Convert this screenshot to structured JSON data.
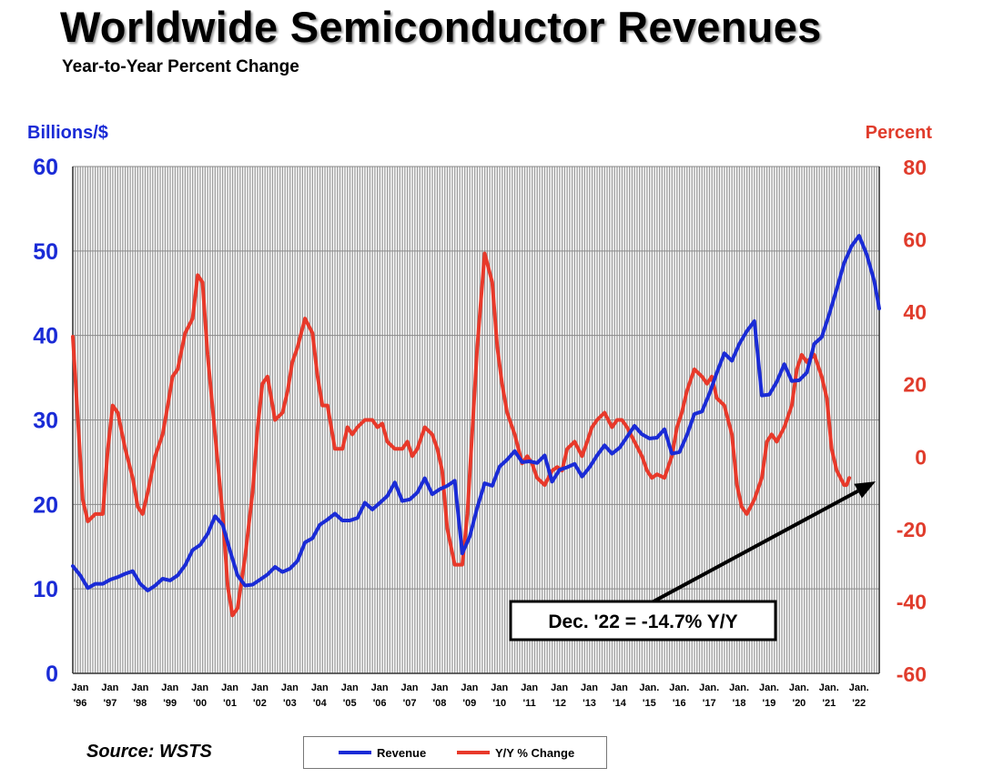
{
  "header": {
    "title": "Worldwide Semiconductor Revenues",
    "subtitle": "Year-to-Year Percent Change"
  },
  "axes": {
    "left_unit": "Billions/$",
    "right_unit": "Percent"
  },
  "annotation": "Dec. '22 = -14.7% Y/Y",
  "source": "Source: WSTS",
  "legend": {
    "revenue": "Revenue",
    "yoy": "Y/Y % Change"
  },
  "colors": {
    "revenue": "#1a2bd6",
    "yoy": "#e8392a",
    "grid": "#9c9c9c"
  },
  "chart_data": {
    "type": "line",
    "x_ticks": [
      {
        "top": "Jan",
        "bottom": "'96"
      },
      {
        "top": "Jan",
        "bottom": "'97"
      },
      {
        "top": "Jan",
        "bottom": "'98"
      },
      {
        "top": "Jan",
        "bottom": "'99"
      },
      {
        "top": "Jan",
        "bottom": "'00"
      },
      {
        "top": "Jan",
        "bottom": "'01"
      },
      {
        "top": "Jan",
        "bottom": "'02"
      },
      {
        "top": "Jan",
        "bottom": "'03"
      },
      {
        "top": "Jan",
        "bottom": "'04"
      },
      {
        "top": "Jan",
        "bottom": "'05"
      },
      {
        "top": "Jan",
        "bottom": "'06"
      },
      {
        "top": "Jan",
        "bottom": "'07"
      },
      {
        "top": "Jan",
        "bottom": "'08"
      },
      {
        "top": "Jan",
        "bottom": "'09"
      },
      {
        "top": "Jan",
        "bottom": "'10"
      },
      {
        "top": "Jan",
        "bottom": "'11"
      },
      {
        "top": "Jan",
        "bottom": "'12"
      },
      {
        "top": "Jan",
        "bottom": "'13"
      },
      {
        "top": "Jan",
        "bottom": "'14"
      },
      {
        "top": "Jan.",
        "bottom": "'15"
      },
      {
        "top": "Jan.",
        "bottom": "'16"
      },
      {
        "top": "Jan.",
        "bottom": "'17"
      },
      {
        "top": "Jan.",
        "bottom": "'18"
      },
      {
        "top": "Jan.",
        "bottom": "'19"
      },
      {
        "top": "Jan.",
        "bottom": "'20"
      },
      {
        "top": "Jan.",
        "bottom": "'21"
      },
      {
        "top": "Jan.",
        "bottom": "'22"
      }
    ],
    "x_range": [
      1996.0,
      2022.92
    ],
    "left_axis": {
      "min": 0,
      "max": 60,
      "ticks": [
        0,
        10,
        20,
        30,
        40,
        50,
        60
      ]
    },
    "right_axis": {
      "min": -60,
      "max": 80,
      "ticks": [
        -60,
        -40,
        -20,
        0,
        20,
        40,
        60,
        80
      ]
    },
    "grid": true,
    "legend_position": "bottom",
    "annotation_point": {
      "x": 2022.92,
      "y": -6
    },
    "series": [
      {
        "name": "Revenue",
        "axis": "left",
        "points": [
          [
            1996.0,
            12.7
          ],
          [
            1996.25,
            11.6
          ],
          [
            1996.5,
            10.1
          ],
          [
            1996.75,
            10.6
          ],
          [
            1997.0,
            10.6
          ],
          [
            1997.25,
            11.1
          ],
          [
            1997.5,
            11.4
          ],
          [
            1997.75,
            11.8
          ],
          [
            1998.0,
            12.1
          ],
          [
            1998.25,
            10.6
          ],
          [
            1998.5,
            9.8
          ],
          [
            1998.75,
            10.4
          ],
          [
            1999.0,
            11.2
          ],
          [
            1999.25,
            11.0
          ],
          [
            1999.5,
            11.6
          ],
          [
            1999.75,
            12.8
          ],
          [
            2000.0,
            14.6
          ],
          [
            2000.25,
            15.2
          ],
          [
            2000.5,
            16.5
          ],
          [
            2000.75,
            18.6
          ],
          [
            2001.0,
            17.6
          ],
          [
            2001.25,
            14.5
          ],
          [
            2001.5,
            11.6
          ],
          [
            2001.75,
            10.4
          ],
          [
            2002.0,
            10.5
          ],
          [
            2002.25,
            11.1
          ],
          [
            2002.5,
            11.7
          ],
          [
            2002.75,
            12.6
          ],
          [
            2003.0,
            12.0
          ],
          [
            2003.25,
            12.4
          ],
          [
            2003.5,
            13.3
          ],
          [
            2003.75,
            15.5
          ],
          [
            2004.0,
            16.0
          ],
          [
            2004.25,
            17.6
          ],
          [
            2004.5,
            18.2
          ],
          [
            2004.75,
            18.9
          ],
          [
            2005.0,
            18.1
          ],
          [
            2005.25,
            18.1
          ],
          [
            2005.5,
            18.4
          ],
          [
            2005.75,
            20.2
          ],
          [
            2006.0,
            19.4
          ],
          [
            2006.25,
            20.2
          ],
          [
            2006.5,
            21.0
          ],
          [
            2006.75,
            22.6
          ],
          [
            2007.0,
            20.4
          ],
          [
            2007.25,
            20.6
          ],
          [
            2007.5,
            21.4
          ],
          [
            2007.75,
            23.1
          ],
          [
            2008.0,
            21.2
          ],
          [
            2008.25,
            21.8
          ],
          [
            2008.5,
            22.2
          ],
          [
            2008.75,
            22.8
          ],
          [
            2009.0,
            14.2
          ],
          [
            2009.25,
            16.2
          ],
          [
            2009.5,
            19.6
          ],
          [
            2009.75,
            22.5
          ],
          [
            2010.0,
            22.2
          ],
          [
            2010.25,
            24.5
          ],
          [
            2010.5,
            25.3
          ],
          [
            2010.75,
            26.3
          ],
          [
            2011.0,
            25.0
          ],
          [
            2011.25,
            25.1
          ],
          [
            2011.5,
            24.9
          ],
          [
            2011.75,
            25.8
          ],
          [
            2012.0,
            22.7
          ],
          [
            2012.25,
            24.1
          ],
          [
            2012.5,
            24.4
          ],
          [
            2012.75,
            24.8
          ],
          [
            2013.0,
            23.3
          ],
          [
            2013.25,
            24.4
          ],
          [
            2013.5,
            25.8
          ],
          [
            2013.75,
            27.0
          ],
          [
            2014.0,
            26.0
          ],
          [
            2014.25,
            26.7
          ],
          [
            2014.5,
            28.0
          ],
          [
            2014.75,
            29.3
          ],
          [
            2015.0,
            28.3
          ],
          [
            2015.25,
            27.8
          ],
          [
            2015.5,
            27.9
          ],
          [
            2015.75,
            28.9
          ],
          [
            2016.0,
            26.0
          ],
          [
            2016.25,
            26.2
          ],
          [
            2016.5,
            28.2
          ],
          [
            2016.75,
            30.7
          ],
          [
            2017.0,
            31.0
          ],
          [
            2017.25,
            33.1
          ],
          [
            2017.5,
            35.6
          ],
          [
            2017.75,
            37.9
          ],
          [
            2018.0,
            37.0
          ],
          [
            2018.25,
            39.0
          ],
          [
            2018.5,
            40.5
          ],
          [
            2018.75,
            41.7
          ],
          [
            2019.0,
            32.9
          ],
          [
            2019.25,
            33.0
          ],
          [
            2019.5,
            34.5
          ],
          [
            2019.75,
            36.6
          ],
          [
            2020.0,
            34.6
          ],
          [
            2020.25,
            34.7
          ],
          [
            2020.5,
            35.6
          ],
          [
            2020.75,
            39.0
          ],
          [
            2021.0,
            39.8
          ],
          [
            2021.25,
            42.5
          ],
          [
            2021.5,
            45.5
          ],
          [
            2021.75,
            48.6
          ],
          [
            2022.0,
            50.6
          ],
          [
            2022.25,
            51.8
          ],
          [
            2022.5,
            49.6
          ],
          [
            2022.75,
            46.5
          ],
          [
            2022.92,
            43.2
          ]
        ]
      },
      {
        "name": "Y/Y % Change",
        "axis": "right",
        "points": [
          [
            1996.0,
            33
          ],
          [
            1996.17,
            10
          ],
          [
            1996.33,
            -12
          ],
          [
            1996.5,
            -18
          ],
          [
            1996.75,
            -16
          ],
          [
            1997.0,
            -16
          ],
          [
            1997.17,
            2
          ],
          [
            1997.33,
            14
          ],
          [
            1997.5,
            12
          ],
          [
            1997.75,
            2
          ],
          [
            1998.0,
            -6
          ],
          [
            1998.17,
            -14
          ],
          [
            1998.33,
            -16
          ],
          [
            1998.5,
            -10
          ],
          [
            1998.75,
            0
          ],
          [
            1999.0,
            6
          ],
          [
            1999.17,
            14
          ],
          [
            1999.33,
            22
          ],
          [
            1999.5,
            24
          ],
          [
            1999.75,
            34
          ],
          [
            2000.0,
            38
          ],
          [
            2000.17,
            50
          ],
          [
            2000.33,
            48
          ],
          [
            2000.5,
            28
          ],
          [
            2000.75,
            6
          ],
          [
            2001.0,
            -16
          ],
          [
            2001.17,
            -36
          ],
          [
            2001.33,
            -44
          ],
          [
            2001.5,
            -42
          ],
          [
            2001.75,
            -28
          ],
          [
            2002.0,
            -10
          ],
          [
            2002.17,
            8
          ],
          [
            2002.33,
            20
          ],
          [
            2002.5,
            22
          ],
          [
            2002.75,
            10
          ],
          [
            2003.0,
            12
          ],
          [
            2003.17,
            18
          ],
          [
            2003.33,
            26
          ],
          [
            2003.5,
            30
          ],
          [
            2003.75,
            38
          ],
          [
            2004.0,
            34
          ],
          [
            2004.17,
            22
          ],
          [
            2004.33,
            14
          ],
          [
            2004.5,
            14
          ],
          [
            2004.75,
            2
          ],
          [
            2005.0,
            2
          ],
          [
            2005.17,
            8
          ],
          [
            2005.33,
            6
          ],
          [
            2005.5,
            8
          ],
          [
            2005.75,
            10
          ],
          [
            2006.0,
            10
          ],
          [
            2006.17,
            8
          ],
          [
            2006.33,
            9
          ],
          [
            2006.5,
            4
          ],
          [
            2006.75,
            2
          ],
          [
            2007.0,
            2
          ],
          [
            2007.17,
            4
          ],
          [
            2007.33,
            0
          ],
          [
            2007.5,
            2
          ],
          [
            2007.75,
            8
          ],
          [
            2008.0,
            6
          ],
          [
            2008.17,
            2
          ],
          [
            2008.33,
            -4
          ],
          [
            2008.5,
            -20
          ],
          [
            2008.75,
            -30
          ],
          [
            2009.0,
            -30
          ],
          [
            2009.17,
            -16
          ],
          [
            2009.33,
            6
          ],
          [
            2009.5,
            30
          ],
          [
            2009.75,
            56
          ],
          [
            2010.0,
            48
          ],
          [
            2010.17,
            30
          ],
          [
            2010.33,
            20
          ],
          [
            2010.5,
            12
          ],
          [
            2010.75,
            6
          ],
          [
            2011.0,
            -2
          ],
          [
            2011.17,
            0
          ],
          [
            2011.33,
            -2
          ],
          [
            2011.5,
            -6
          ],
          [
            2011.75,
            -8
          ],
          [
            2012.0,
            -4
          ],
          [
            2012.17,
            -3
          ],
          [
            2012.33,
            -4
          ],
          [
            2012.5,
            2
          ],
          [
            2012.75,
            4
          ],
          [
            2013.0,
            0
          ],
          [
            2013.17,
            4
          ],
          [
            2013.33,
            8
          ],
          [
            2013.5,
            10
          ],
          [
            2013.75,
            12
          ],
          [
            2014.0,
            8
          ],
          [
            2014.17,
            10
          ],
          [
            2014.33,
            10
          ],
          [
            2014.5,
            8
          ],
          [
            2014.75,
            4
          ],
          [
            2015.0,
            0
          ],
          [
            2015.17,
            -4
          ],
          [
            2015.33,
            -6
          ],
          [
            2015.5,
            -5
          ],
          [
            2015.75,
            -6
          ],
          [
            2016.0,
            0
          ],
          [
            2016.17,
            8
          ],
          [
            2016.33,
            12
          ],
          [
            2016.5,
            18
          ],
          [
            2016.75,
            24
          ],
          [
            2017.0,
            22
          ],
          [
            2017.17,
            20
          ],
          [
            2017.33,
            22
          ],
          [
            2017.5,
            16
          ],
          [
            2017.75,
            14
          ],
          [
            2018.0,
            6
          ],
          [
            2018.17,
            -8
          ],
          [
            2018.33,
            -14
          ],
          [
            2018.5,
            -16
          ],
          [
            2018.75,
            -12
          ],
          [
            2019.0,
            -6
          ],
          [
            2019.17,
            4
          ],
          [
            2019.33,
            6
          ],
          [
            2019.5,
            4
          ],
          [
            2019.75,
            8
          ],
          [
            2020.0,
            14
          ],
          [
            2020.17,
            24
          ],
          [
            2020.33,
            28
          ],
          [
            2020.5,
            26
          ],
          [
            2020.75,
            28
          ],
          [
            2021.0,
            22
          ],
          [
            2021.17,
            16
          ],
          [
            2021.33,
            2
          ],
          [
            2021.5,
            -4
          ],
          [
            2021.75,
            -8
          ],
          [
            2021.83,
            -8
          ],
          [
            2021.92,
            -6
          ]
        ]
      }
    ]
  }
}
